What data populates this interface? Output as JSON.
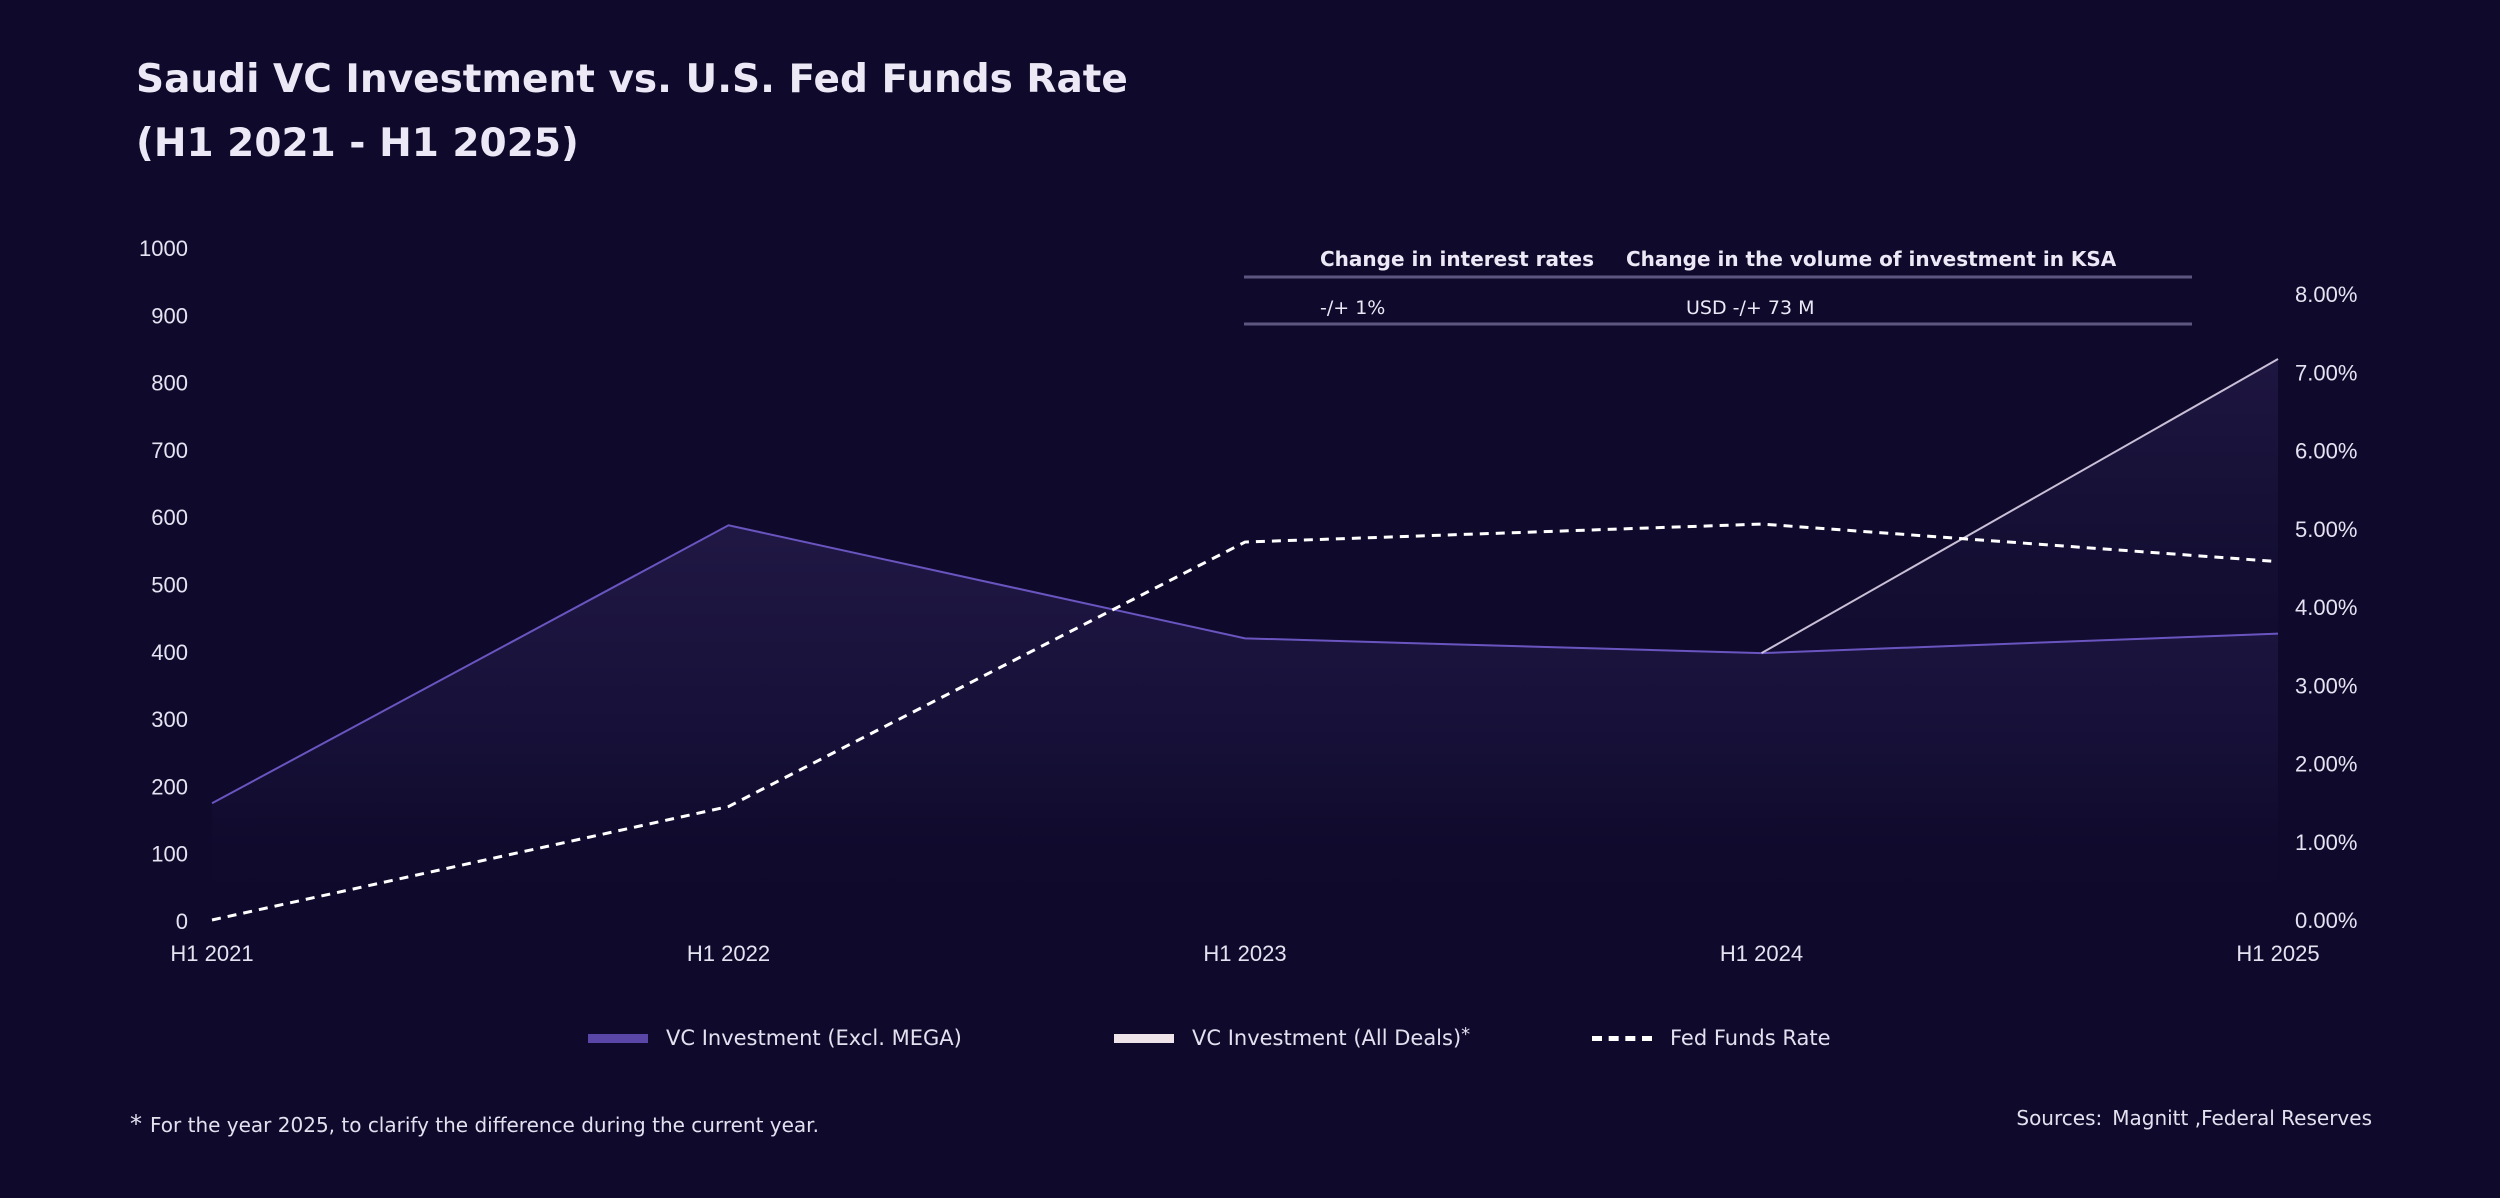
{
  "chart_data": {
    "type": "line",
    "title_line1": "Saudi VC Investment vs. U.S. Fed Funds Rate",
    "title_line2": "(H1 2021 - H1 2025)",
    "categories": [
      "H1 2021",
      "H1 2022",
      "H1 2023",
      "H1 2024",
      "H1 2025"
    ],
    "y_left": {
      "min": 0,
      "max": 1000,
      "ticks": [
        "0",
        "100",
        "200",
        "300",
        "400",
        "500",
        "600",
        "700",
        "800",
        "900",
        "1000"
      ]
    },
    "y_right": {
      "min": 0,
      "max": 8,
      "ticks": [
        "0.00%",
        "1.00%",
        "2.00%",
        "3.00%",
        "4.00%",
        "5.00%",
        "6.00%",
        "7.00%",
        "8.00%"
      ]
    },
    "series": [
      {
        "name": "VC Investment (Excl. MEGA)",
        "axis": "left",
        "values": [
          175,
          588,
          420,
          398,
          427
        ],
        "color": "#6a55c0"
      },
      {
        "name": "VC Investment (All Deals)",
        "axis": "left",
        "values": [
          null,
          null,
          null,
          398,
          835
        ],
        "color": "#c9bfd6"
      },
      {
        "name": "Fed Funds Rate",
        "axis": "right",
        "values": [
          0.0,
          1.45,
          4.83,
          5.06,
          4.58
        ],
        "color": "#ffffff"
      }
    ],
    "table": {
      "headers": [
        "Change in interest rates",
        "Change in the volume of investment in KSA"
      ],
      "row": [
        "-/+ 1%",
        "USD -/+ 73 M"
      ]
    }
  },
  "legend": {
    "excl_label": "VC Investment (Excl. MEGA)",
    "all_label": "VC Investment (All Deals)",
    "all_marker": "*",
    "fed_label": "Fed Funds Rate"
  },
  "footnote": {
    "marker": "*",
    "text": "For the year 2025, to clarify the difference during the current year."
  },
  "sources": {
    "label": "Sources:",
    "text": "Magnitt ,Federal Reserves"
  },
  "colors": {
    "background": "#0f0a2b",
    "excl": "#5a46a6",
    "all": "#efe4ea",
    "fed": "#ffffff"
  }
}
